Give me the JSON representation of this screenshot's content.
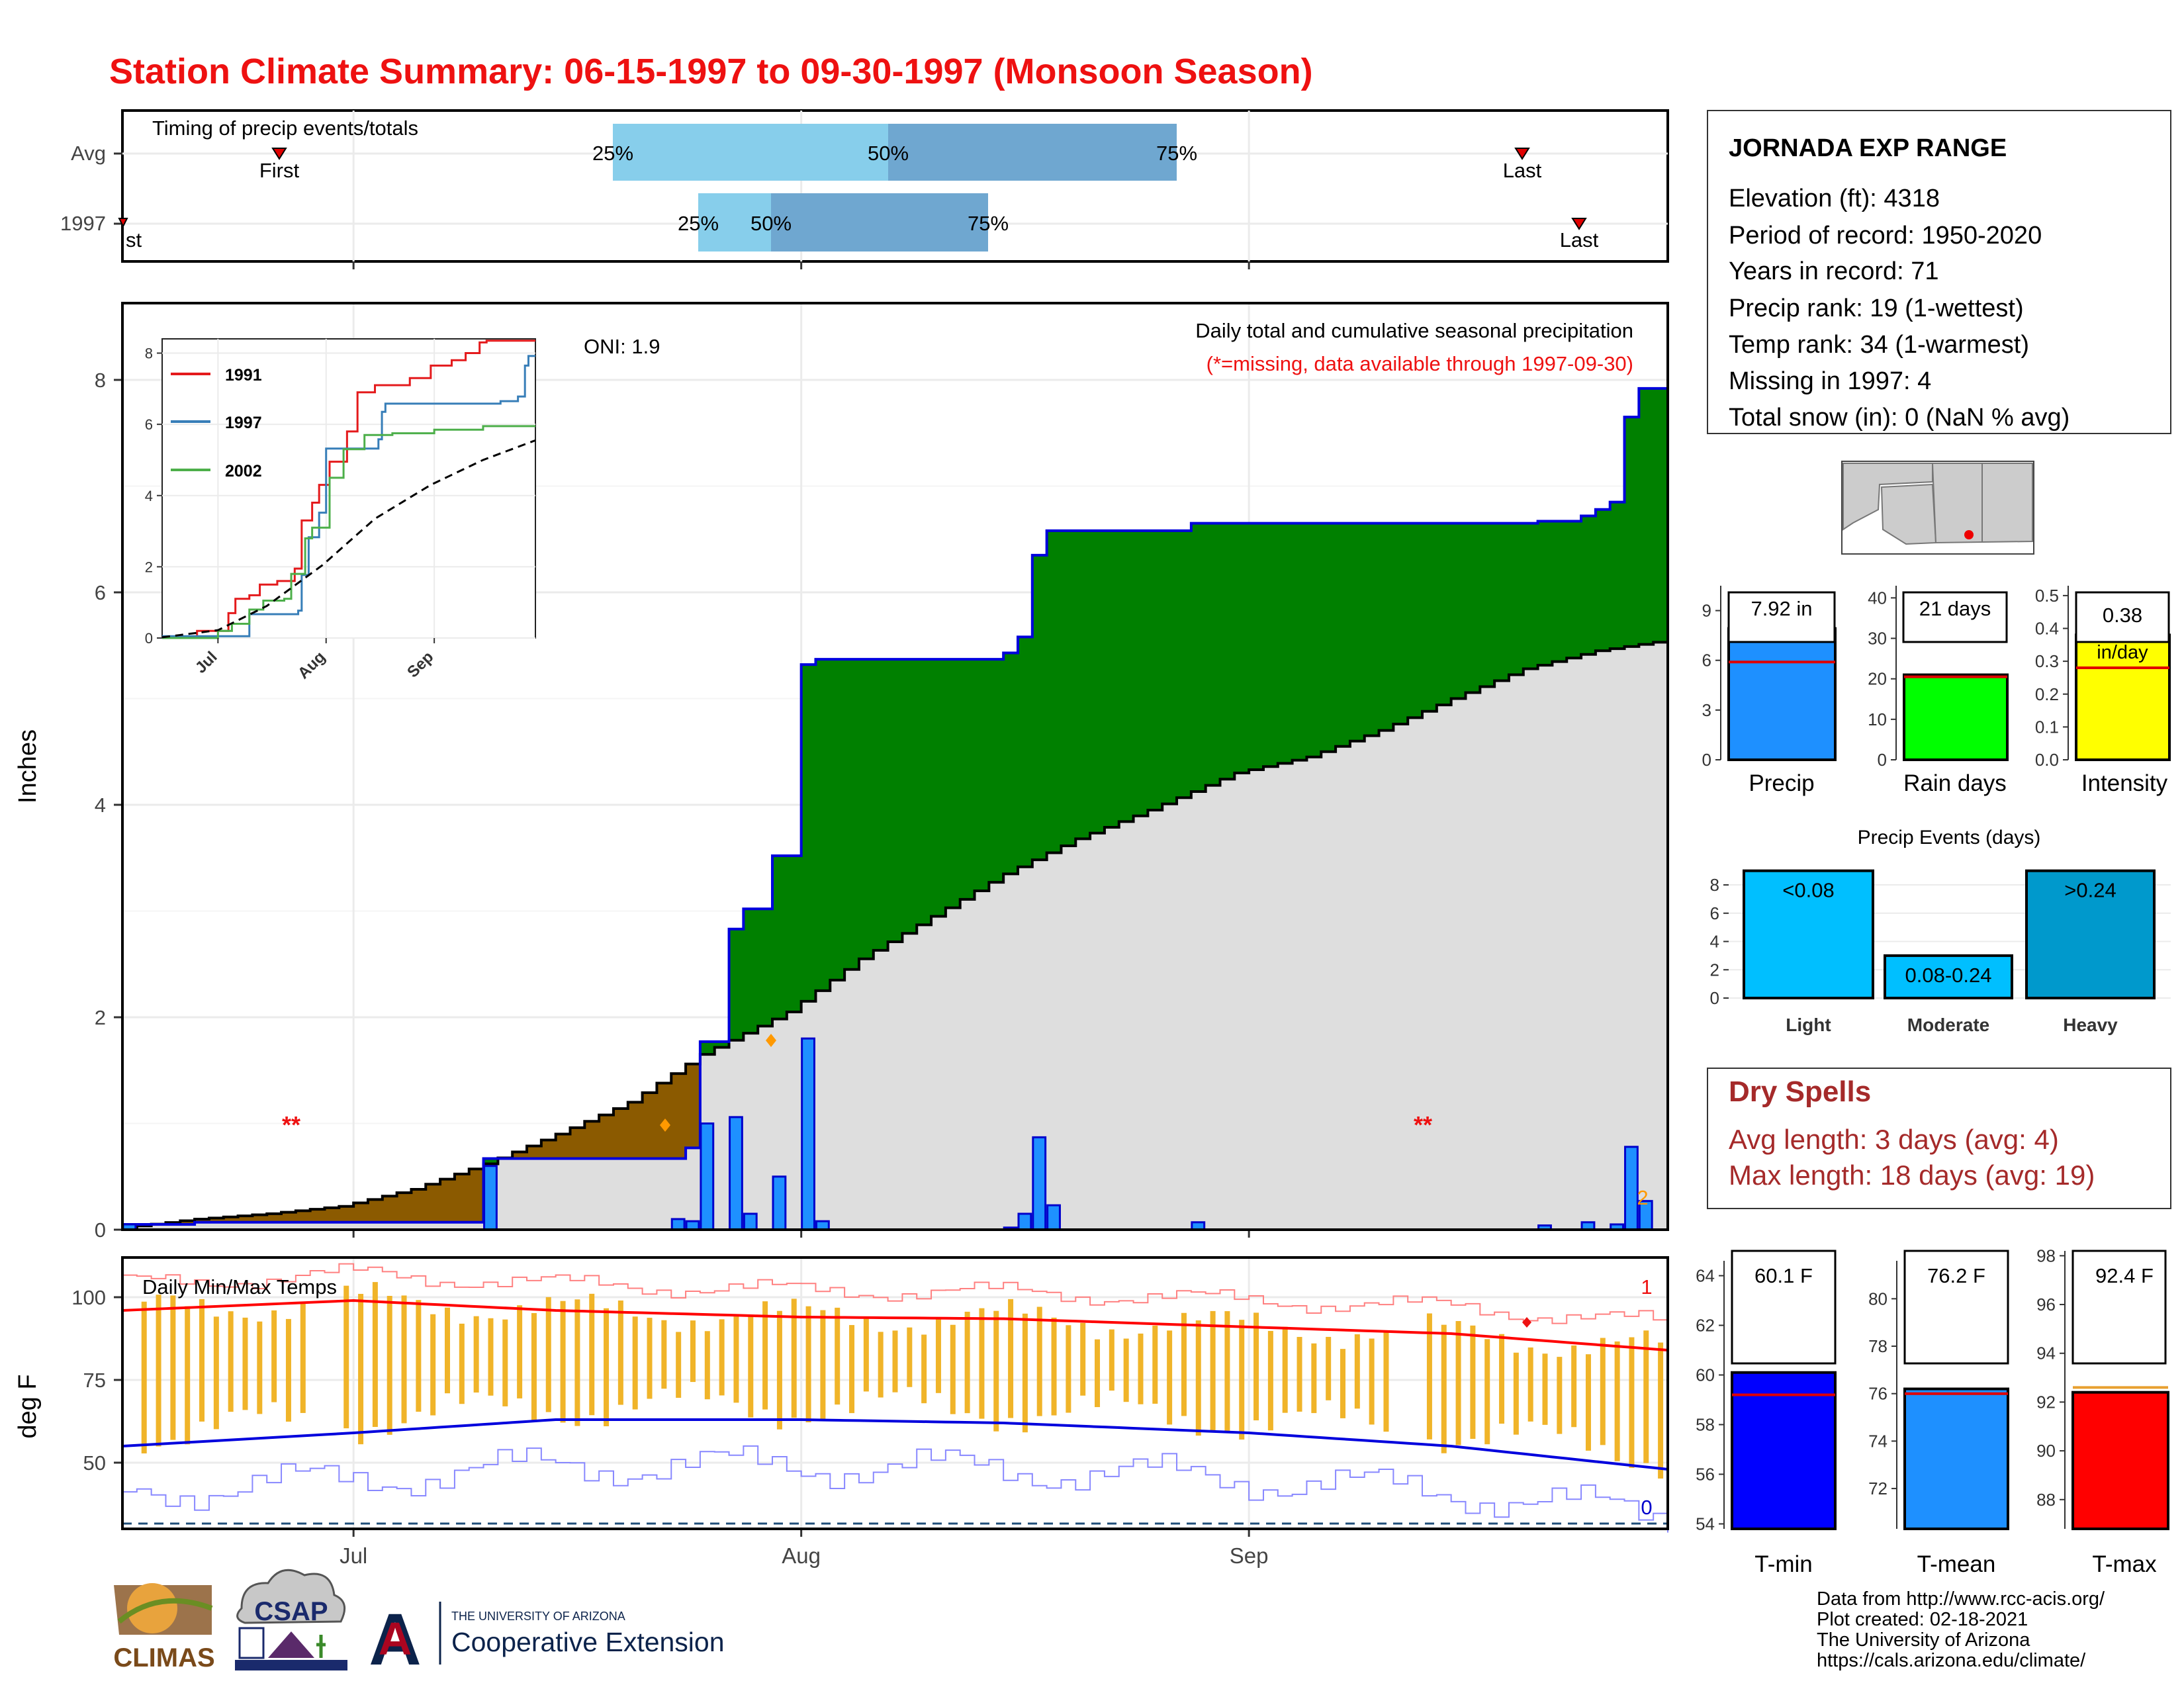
{
  "title": "Station Climate Summary: 06-15-1997 to 09-30-1997 (Monsoon Season)",
  "colors": {
    "title": "#ee1111",
    "light_blue": "#87ceeb",
    "mid_blue": "#6fa7d0",
    "green": "#008000",
    "brown": "#8b5a00",
    "gray_fill": "#dedede",
    "bar_blue": "#1e90ff",
    "temp_bar": "#f0b429",
    "dry_red": "#a52a2a"
  },
  "timing": {
    "label": "Timing of precip events/totals",
    "rows": [
      "Avg",
      "1997"
    ],
    "avg": {
      "q25": "25%",
      "q50": "50%",
      "q75": "75%",
      "first": "First",
      "last": "Last"
    },
    "y1997": {
      "q25": "25%",
      "q50": "50%",
      "q75": "75%",
      "first": "st",
      "last": "Last"
    }
  },
  "station": {
    "name": "JORNADA EXP RANGE",
    "lines": [
      "Elevation (ft): 4318",
      "Period of record: 1950-2020",
      "Years in record: 71",
      "Precip rank: 19 (1-wettest)",
      "Temp rank: 34 (1-warmest)",
      "Missing in 1997: 4",
      "Total snow (in): 0 (NaN % avg)"
    ]
  },
  "main_chart": {
    "ylabel": "Inches",
    "oni": "ONI: 1.9",
    "legend_title": "Daily total and cumulative seasonal precipitation",
    "missing_note": "(*=missing, data available through 1997-09-30)",
    "missing_marks": [
      "**",
      "**"
    ],
    "count_label": "2",
    "y_ticks": [
      "0",
      "2",
      "4",
      "6",
      "8"
    ],
    "x_ticks": [
      "Jul",
      "Aug",
      "Sep"
    ]
  },
  "inset": {
    "legend": [
      "1991",
      "1997",
      "2002"
    ],
    "y_ticks": [
      "0",
      "2",
      "4",
      "6",
      "8"
    ],
    "x_ticks": [
      "Jul",
      "Aug",
      "Sep"
    ]
  },
  "temp_chart": {
    "ylabel": "deg F",
    "label": "Daily Min/Max Temps",
    "top_count": "1",
    "bottom_count": "0",
    "y_ticks": [
      "50",
      "75",
      "100"
    ],
    "x_ticks": [
      "Jul",
      "Aug",
      "Sep"
    ]
  },
  "stat_bars": {
    "precip": {
      "label": "Precip",
      "value_text": "7.92 in",
      "ticks": [
        "0",
        "3",
        "6",
        "9"
      ]
    },
    "rain_days": {
      "label": "Rain days",
      "value_text": "21 days",
      "ticks": [
        "0",
        "10",
        "20",
        "30",
        "40"
      ]
    },
    "intensity": {
      "label": "Intensity",
      "value_text": "0.38",
      "unit": "in/day",
      "ticks": [
        "0.0",
        "0.1",
        "0.2",
        "0.3",
        "0.4",
        "0.5"
      ]
    }
  },
  "events": {
    "title": "Precip Events (days)",
    "ticks": [
      "0",
      "2",
      "4",
      "6",
      "8"
    ],
    "bars": [
      {
        "name": "Light",
        "label": "<0.08"
      },
      {
        "name": "Moderate",
        "label": "0.08-0.24"
      },
      {
        "name": "Heavy",
        "label": ">0.24"
      }
    ]
  },
  "dry_spells": {
    "title": "Dry Spells",
    "avg": "Avg length: 3 days (avg: 4)",
    "max": "Max length: 18 days (avg: 19)"
  },
  "temp_bars": {
    "tmin": {
      "label": "T-min",
      "value_text": "60.1 F",
      "ticks": [
        "54",
        "56",
        "58",
        "60",
        "62",
        "64"
      ]
    },
    "tmean": {
      "label": "T-mean",
      "value_text": "76.2 F",
      "ticks": [
        "72",
        "74",
        "76",
        "78",
        "80"
      ]
    },
    "tmax": {
      "label": "T-max",
      "value_text": "92.4 F",
      "ticks": [
        "88",
        "90",
        "92",
        "94",
        "96",
        "98"
      ]
    }
  },
  "footer": {
    "lines": [
      "Data from http://www.rcc-acis.org/",
      "Plot created: 02-18-2021",
      "The University of Arizona",
      "https://cals.arizona.edu/climate/"
    ],
    "logo_climas": "CLIMAS",
    "logo_csap": "CSAP",
    "logo_ua_small": "THE UNIVERSITY OF ARIZONA",
    "logo_ua_big": "Cooperative Extension",
    "logo_ua_letter": "A"
  },
  "chart_data": [
    {
      "type": "area",
      "title": "Daily total and cumulative seasonal precipitation",
      "ylabel": "Inches",
      "ylim": [
        0,
        8.7
      ],
      "x_range": [
        "1997-06-15",
        "1997-09-30"
      ],
      "series": [
        {
          "name": "1997",
          "cumulative_points": [
            [
              "1997-06-15",
              0.05
            ],
            [
              "1997-06-20",
              0.07
            ],
            [
              "1997-07-09",
              0.07
            ],
            [
              "1997-07-10",
              0.67
            ],
            [
              "1997-07-23",
              0.67
            ],
            [
              "1997-07-24",
              0.77
            ],
            [
              "1997-07-25",
              1.77
            ],
            [
              "1997-07-26",
              1.77
            ],
            [
              "1997-07-27",
              2.83
            ],
            [
              "1997-07-28",
              3.02
            ],
            [
              "1997-07-30",
              3.52
            ],
            [
              "1997-07-31",
              3.52
            ],
            [
              "1997-08-01",
              5.32
            ],
            [
              "1997-08-02",
              5.37
            ],
            [
              "1997-08-14",
              5.37
            ],
            [
              "1997-08-15",
              5.43
            ],
            [
              "1997-08-16",
              5.58
            ],
            [
              "1997-08-17",
              6.35
            ],
            [
              "1997-08-18",
              6.58
            ],
            [
              "1997-08-27",
              6.58
            ],
            [
              "1997-08-28",
              6.65
            ],
            [
              "1997-09-20",
              6.65
            ],
            [
              "1997-09-21",
              6.67
            ],
            [
              "1997-09-24",
              6.72
            ],
            [
              "1997-09-25",
              6.78
            ],
            [
              "1997-09-26",
              6.85
            ],
            [
              "1997-09-27",
              7.65
            ],
            [
              "1997-09-28",
              7.92
            ],
            [
              "1997-09-30",
              7.92
            ]
          ],
          "daily_points": [
            [
              "1997-06-15",
              0.05
            ],
            [
              "1997-07-10",
              0.6
            ],
            [
              "1997-07-23",
              0.1
            ],
            [
              "1997-07-24",
              0.08
            ],
            [
              "1997-07-25",
              1.0
            ],
            [
              "1997-07-27",
              1.06
            ],
            [
              "1997-07-28",
              0.15
            ],
            [
              "1997-07-30",
              0.5
            ],
            [
              "1997-08-01",
              1.8
            ],
            [
              "1997-08-02",
              0.08
            ],
            [
              "1997-08-15",
              0.02
            ],
            [
              "1997-08-16",
              0.15
            ],
            [
              "1997-08-17",
              0.87
            ],
            [
              "1997-08-18",
              0.23
            ],
            [
              "1997-08-28",
              0.07
            ],
            [
              "1997-09-21",
              0.04
            ],
            [
              "1997-09-24",
              0.07
            ],
            [
              "1997-09-26",
              0.05
            ],
            [
              "1997-09-27",
              0.78
            ],
            [
              "1997-09-28",
              0.27
            ]
          ]
        },
        {
          "name": "Avg",
          "cumulative_points": [
            [
              "1997-06-15",
              0.02
            ],
            [
              "1997-06-20",
              0.1
            ],
            [
              "1997-06-25",
              0.15
            ],
            [
              "1997-06-30",
              0.22
            ],
            [
              "1997-07-05",
              0.38
            ],
            [
              "1997-07-10",
              0.62
            ],
            [
              "1997-07-15",
              0.9
            ],
            [
              "1997-07-20",
              1.2
            ],
            [
              "1997-07-25",
              1.65
            ],
            [
              "1997-07-31",
              2.05
            ],
            [
              "1997-08-05",
              2.55
            ],
            [
              "1997-08-10",
              2.95
            ],
            [
              "1997-08-15",
              3.35
            ],
            [
              "1997-08-20",
              3.68
            ],
            [
              "1997-08-25",
              3.95
            ],
            [
              "1997-08-31",
              4.3
            ],
            [
              "1997-09-05",
              4.45
            ],
            [
              "1997-09-10",
              4.7
            ],
            [
              "1997-09-15",
              5.0
            ],
            [
              "1997-09-20",
              5.28
            ],
            [
              "1997-09-25",
              5.45
            ],
            [
              "1997-09-30",
              5.55
            ]
          ]
        }
      ]
    },
    {
      "type": "line",
      "title": "",
      "ylim": [
        0,
        8.4
      ],
      "x_range": [
        "1997-06-15",
        "1997-09-30"
      ],
      "series": [
        {
          "name": "1991",
          "points": [
            [
              "1997-06-15",
              0
            ],
            [
              "1997-06-25",
              0.2
            ],
            [
              "1997-07-01",
              0.2
            ],
            [
              "1997-07-04",
              0.7
            ],
            [
              "1997-07-06",
              1.1
            ],
            [
              "1997-07-10",
              1.2
            ],
            [
              "1997-07-13",
              1.5
            ],
            [
              "1997-07-18",
              1.6
            ],
            [
              "1997-07-23",
              1.95
            ],
            [
              "1997-07-25",
              3.3
            ],
            [
              "1997-07-28",
              3.8
            ],
            [
              "1997-07-30",
              4.3
            ],
            [
              "1997-08-02",
              4.95
            ],
            [
              "1997-08-07",
              5.8
            ],
            [
              "1997-08-10",
              6.9
            ],
            [
              "1997-08-15",
              7.1
            ],
            [
              "1997-08-25",
              7.3
            ],
            [
              "1997-08-31",
              7.65
            ],
            [
              "1997-09-06",
              7.8
            ],
            [
              "1997-09-10",
              8.0
            ],
            [
              "1997-09-14",
              8.3
            ],
            [
              "1997-09-16",
              8.35
            ],
            [
              "1997-09-30",
              8.35
            ]
          ]
        },
        {
          "name": "1997",
          "points": [
            [
              "1997-06-15",
              0.05
            ],
            [
              "1997-07-10",
              0.67
            ],
            [
              "1997-07-24",
              0.77
            ],
            [
              "1997-07-25",
              1.77
            ],
            [
              "1997-07-27",
              2.83
            ],
            [
              "1997-07-30",
              3.52
            ],
            [
              "1997-08-01",
              5.32
            ],
            [
              "1997-08-16",
              5.58
            ],
            [
              "1997-08-17",
              6.35
            ],
            [
              "1997-08-18",
              6.58
            ],
            [
              "1997-09-20",
              6.65
            ],
            [
              "1997-09-25",
              6.78
            ],
            [
              "1997-09-27",
              7.65
            ],
            [
              "1997-09-28",
              7.92
            ],
            [
              "1997-09-30",
              7.92
            ]
          ]
        },
        {
          "name": "2002",
          "points": [
            [
              "1997-06-15",
              0
            ],
            [
              "1997-07-01",
              0.2
            ],
            [
              "1997-07-05",
              0.4
            ],
            [
              "1997-07-10",
              0.8
            ],
            [
              "1997-07-14",
              1.05
            ],
            [
              "1997-07-20",
              1.1
            ],
            [
              "1997-07-22",
              1.8
            ],
            [
              "1997-07-26",
              2.8
            ],
            [
              "1997-07-28",
              3.1
            ],
            [
              "1997-08-02",
              4.5
            ],
            [
              "1997-08-06",
              5.3
            ],
            [
              "1997-08-12",
              5.7
            ],
            [
              "1997-08-20",
              5.75
            ],
            [
              "1997-09-01",
              5.85
            ],
            [
              "1997-09-15",
              5.95
            ],
            [
              "1997-09-30",
              5.95
            ]
          ]
        },
        {
          "name": "Avg",
          "points": [
            [
              "1997-06-15",
              0.02
            ],
            [
              "1997-07-01",
              0.22
            ],
            [
              "1997-07-15",
              0.9
            ],
            [
              "1997-07-31",
              2.05
            ],
            [
              "1997-08-15",
              3.35
            ],
            [
              "1997-08-31",
              4.3
            ],
            [
              "1997-09-15",
              5.0
            ],
            [
              "1997-09-30",
              5.55
            ]
          ]
        }
      ]
    },
    {
      "type": "bar",
      "title": "Daily Min/Max Temps",
      "ylabel": "deg F",
      "ylim": [
        30,
        112
      ],
      "x_range": [
        "1997-06-15",
        "1997-09-30"
      ],
      "series": [
        {
          "name": "Avg max",
          "points": [
            [
              "1997-06-15",
              96
            ],
            [
              "1997-07-01",
              99
            ],
            [
              "1997-07-15",
              96
            ],
            [
              "1997-08-01",
              94
            ],
            [
              "1997-08-15",
              93.5
            ],
            [
              "1997-09-01",
              91
            ],
            [
              "1997-09-15",
              89
            ],
            [
              "1997-09-30",
              84
            ]
          ]
        },
        {
          "name": "Avg min",
          "points": [
            [
              "1997-06-15",
              55
            ],
            [
              "1997-07-01",
              59
            ],
            [
              "1997-07-15",
              63
            ],
            [
              "1997-08-01",
              63
            ],
            [
              "1997-08-15",
              62
            ],
            [
              "1997-09-01",
              59
            ],
            [
              "1997-09-15",
              55
            ],
            [
              "1997-09-30",
              48
            ]
          ]
        }
      ]
    },
    {
      "type": "bar",
      "title": "",
      "categories": [
        "Precip",
        "Rain days",
        "Intensity"
      ],
      "series": [
        {
          "name": "1997",
          "values": [
            7.92,
            21,
            0.38
          ]
        },
        {
          "name": "Avg",
          "values": [
            5.9,
            20.5,
            0.28
          ]
        }
      ]
    },
    {
      "type": "bar",
      "title": "Precip Events (days)",
      "categories": [
        "Light",
        "Moderate",
        "Heavy"
      ],
      "values": [
        9,
        3,
        9
      ],
      "ylim": [
        0,
        9.5
      ]
    },
    {
      "type": "bar",
      "title": "",
      "categories": [
        "T-min",
        "T-mean",
        "T-max"
      ],
      "series": [
        {
          "name": "1997",
          "values": [
            60.1,
            76.2,
            92.4
          ]
        },
        {
          "name": "Avg",
          "values": [
            59.2,
            76.0,
            92.6
          ]
        }
      ]
    }
  ]
}
